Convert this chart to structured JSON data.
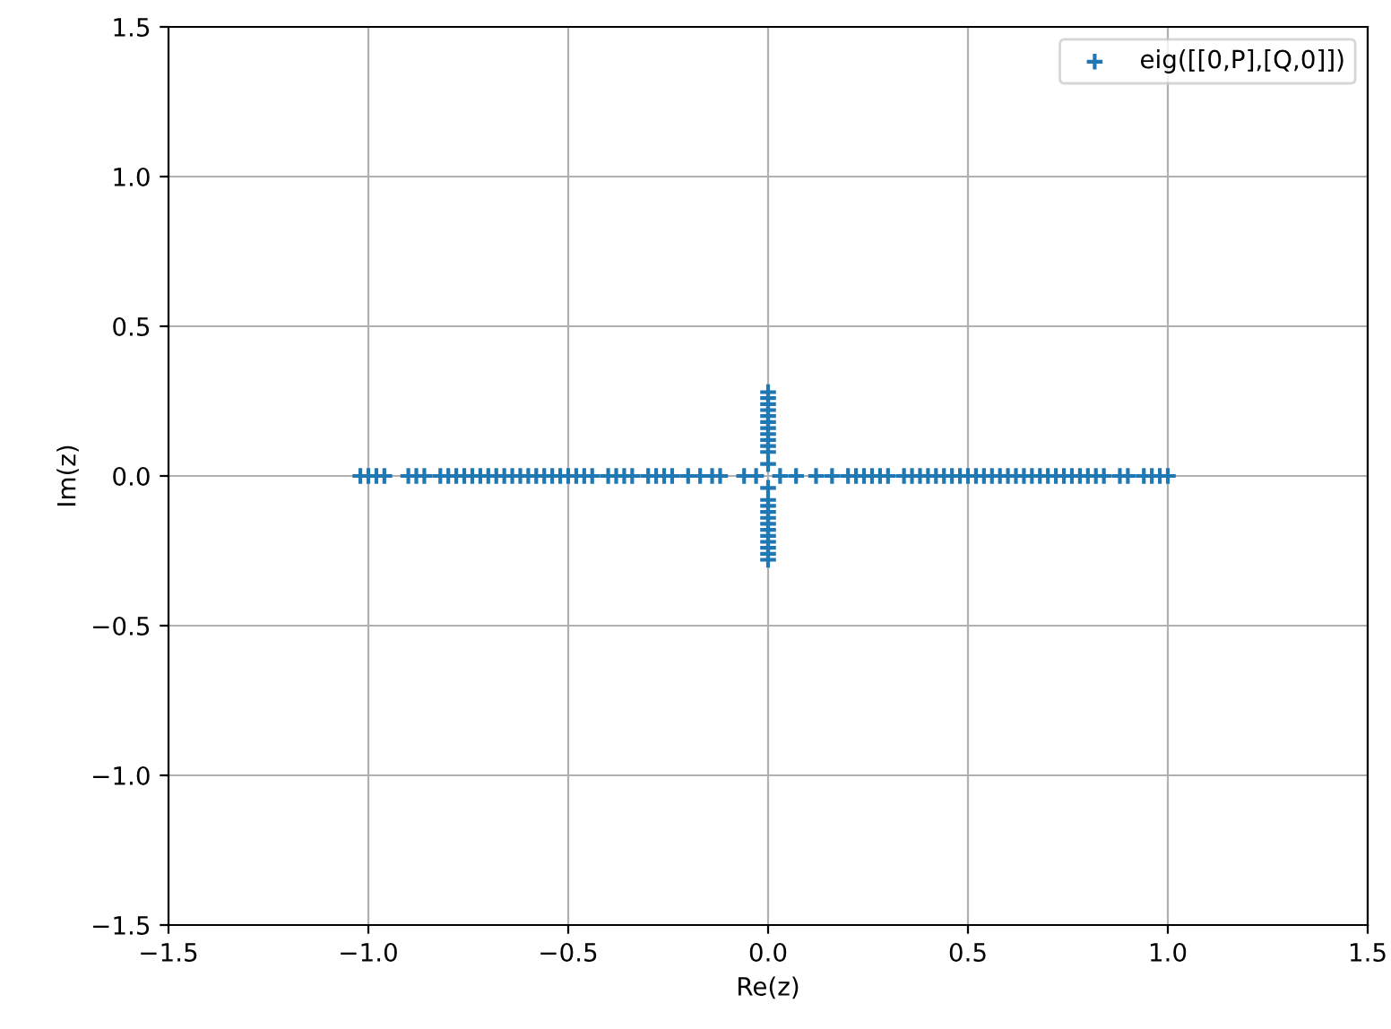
{
  "chart_data": {
    "type": "scatter",
    "xlabel": "Re(z)",
    "ylabel": "Im(z)",
    "x": [
      -1.02,
      -1.0,
      -0.98,
      -0.96,
      -0.9,
      -0.88,
      -0.86,
      -0.82,
      -0.8,
      -0.78,
      -0.76,
      -0.74,
      -0.72,
      -0.7,
      -0.68,
      -0.66,
      -0.64,
      -0.62,
      -0.6,
      -0.58,
      -0.56,
      -0.54,
      -0.52,
      -0.5,
      -0.48,
      -0.46,
      -0.44,
      -0.4,
      -0.38,
      -0.36,
      -0.34,
      -0.3,
      -0.28,
      -0.26,
      -0.24,
      -0.2,
      -0.17,
      -0.14,
      -0.12,
      -0.06,
      -0.03,
      0.03,
      0.07,
      0.12,
      0.16,
      0.2,
      0.22,
      0.24,
      0.26,
      0.28,
      0.3,
      0.34,
      0.36,
      0.38,
      0.4,
      0.42,
      0.44,
      0.46,
      0.48,
      0.5,
      0.52,
      0.54,
      0.56,
      0.58,
      0.6,
      0.62,
      0.64,
      0.66,
      0.68,
      0.7,
      0.72,
      0.74,
      0.76,
      0.78,
      0.8,
      0.82,
      0.84,
      0.88,
      0.9,
      0.94,
      0.96,
      0.98,
      1.0,
      0,
      0,
      0,
      0,
      0,
      0,
      0,
      0,
      0,
      0,
      0,
      0,
      0,
      0,
      0,
      0,
      0,
      0,
      0,
      0,
      0,
      0,
      0,
      0
    ],
    "series": [
      {
        "name": "eig([[0,P],[Q,0]])",
        "color": "#1f77b4",
        "values": [
          0,
          0,
          0,
          0,
          0,
          0,
          0,
          0,
          0,
          0,
          0,
          0,
          0,
          0,
          0,
          0,
          0,
          0,
          0,
          0,
          0,
          0,
          0,
          0,
          0,
          0,
          0,
          0,
          0,
          0,
          0,
          0,
          0,
          0,
          0,
          0,
          0,
          0,
          0,
          0,
          0,
          0,
          0,
          0,
          0,
          0,
          0,
          0,
          0,
          0,
          0,
          0,
          0,
          0,
          0,
          0,
          0,
          0,
          0,
          0,
          0,
          0,
          0,
          0,
          0,
          0,
          0,
          0,
          0,
          0,
          0,
          0,
          0,
          0,
          0,
          0,
          0,
          0,
          0,
          0,
          0,
          0,
          0,
          0.04,
          0.08,
          0.1,
          0.12,
          0.14,
          0.16,
          0.18,
          0.2,
          0.22,
          0.24,
          0.26,
          0.28,
          -0.04,
          -0.08,
          -0.1,
          -0.12,
          -0.14,
          -0.16,
          -0.18,
          -0.2,
          -0.22,
          -0.24,
          -0.26,
          -0.28
        ]
      }
    ],
    "marker": "cross",
    "legend": "top right",
    "grid": true,
    "xlim": [
      -1.5,
      1.5
    ],
    "xticks": [
      {
        "value": -1.5,
        "label": "−1.5"
      },
      {
        "value": -1.0,
        "label": "−1.0"
      },
      {
        "value": -0.5,
        "label": "−0.5"
      },
      {
        "value": 0,
        "label": "0.0"
      },
      {
        "value": 0.5,
        "label": "0.5"
      },
      {
        "value": 1.0,
        "label": "1.0"
      },
      {
        "value": 1.5,
        "label": "1.5"
      }
    ],
    "ylim": [
      -1.5,
      1.5
    ],
    "yticks": [
      {
        "value": -1.5,
        "label": "−1.5"
      },
      {
        "value": -1.0,
        "label": "−1.0"
      },
      {
        "value": -0.5,
        "label": "−0.5"
      },
      {
        "value": 0,
        "label": "0.0"
      },
      {
        "value": 0.5,
        "label": "0.5"
      },
      {
        "value": 1.0,
        "label": "1.0"
      },
      {
        "value": 1.5,
        "label": "1.5"
      }
    ]
  }
}
